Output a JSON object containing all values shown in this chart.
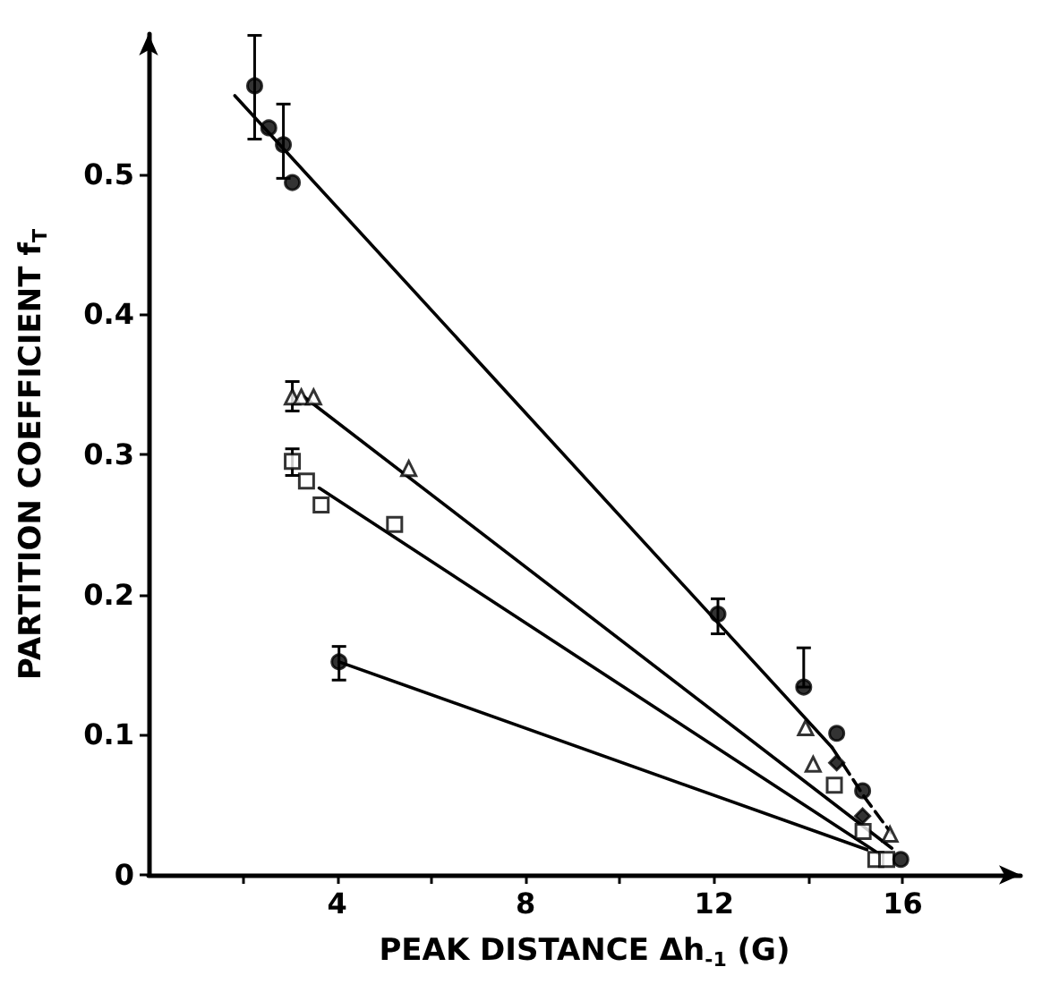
{
  "chart_data": {
    "type": "scatter",
    "xlabel": "PEAK DISTANCE Δh$_{-1}$ (G)",
    "ylabel": "PARTITION COEFFICIENT f$_{T}$",
    "xlim": [
      0,
      18.5
    ],
    "ylim": [
      0,
      0.6
    ],
    "xticks": [
      {
        "value": 2,
        "label": null
      },
      4,
      {
        "value": 6,
        "label": null
      },
      8,
      {
        "value": 10,
        "label": null
      },
      12,
      {
        "value": 14,
        "label": null
      },
      16
    ],
    "yticks": [
      0,
      0.1,
      0.2,
      0.3,
      0.4,
      0.5
    ],
    "grid": false,
    "series": [
      {
        "marker": "circle",
        "color": "#000000",
        "x": [
          2.25,
          2.55,
          2.86,
          3.05,
          12.08,
          13.9,
          14.6,
          15.15
        ],
        "values": [
          0.563,
          0.533,
          0.521,
          0.494,
          0.186,
          0.134,
          0.101,
          0.06
        ],
        "errors": [
          [
            0.525,
            0.599
          ],
          null,
          [
            0.497,
            0.55
          ],
          null,
          [
            0.172,
            0.197
          ],
          [
            0.134,
            0.162
          ],
          null,
          null
        ]
      },
      {
        "marker": "diamond",
        "color": "#000000",
        "x": [
          14.6,
          15.15
        ],
        "values": [
          0.08,
          0.042
        ]
      },
      {
        "marker": "triangle",
        "color": "#000000",
        "x": [
          3.05,
          3.24,
          3.5,
          5.52,
          13.94,
          14.1,
          15.73
        ],
        "values": [
          0.341,
          0.341,
          0.341,
          0.29,
          0.105,
          0.079,
          0.029
        ],
        "errors": [
          [
            0.331,
            0.352
          ],
          null,
          null,
          null,
          null,
          null,
          null
        ]
      },
      {
        "marker": "square",
        "color": "#000000",
        "x": [
          3.05,
          3.35,
          3.66,
          5.22,
          14.55,
          15.16,
          15.43,
          15.66
        ],
        "values": [
          0.295,
          0.281,
          0.264,
          0.25,
          0.064,
          0.031,
          0.011,
          0.011
        ],
        "errors": [
          [
            0.285,
            0.304
          ],
          null,
          null,
          null,
          null,
          null,
          null,
          null
        ]
      },
      {
        "marker": "circle",
        "color": "#000000",
        "x": [
          4.04,
          15.96
        ],
        "values": [
          0.152,
          0.011
        ],
        "errors": [
          [
            0.139,
            0.163
          ],
          null
        ]
      },
      {
        "type": "line",
        "marker": "none",
        "line_style": "solid",
        "color": "#000000",
        "x": [
          1.83,
          14.5
        ],
        "values": [
          0.556,
          0.091
        ]
      },
      {
        "type": "line",
        "marker": "none",
        "line_style": "dashed",
        "color": "#000000",
        "x": [
          14.5,
          15.2,
          15.75
        ],
        "values": [
          0.091,
          0.055,
          0.03
        ]
      },
      {
        "type": "line",
        "marker": "none",
        "line_style": "solid",
        "color": "#000000",
        "x": [
          3.3,
          15.77
        ],
        "values": [
          0.341,
          0.019
        ]
      },
      {
        "type": "line",
        "marker": "none",
        "line_style": "solid",
        "color": "#000000",
        "x": [
          3.62,
          15.5
        ],
        "values": [
          0.276,
          0.015
        ]
      },
      {
        "type": "line",
        "marker": "none",
        "line_style": "solid",
        "color": "#000000",
        "x": [
          4.04,
          15.24
        ],
        "values": [
          0.152,
          0.018
        ]
      }
    ]
  }
}
